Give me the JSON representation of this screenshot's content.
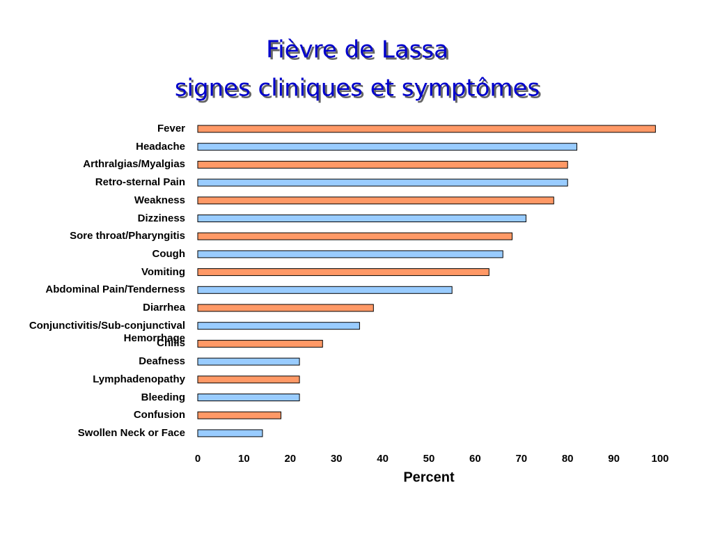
{
  "chart_data": {
    "type": "bar",
    "orientation": "horizontal",
    "title": [
      "Fièvre de Lassa",
      "signes cliniques et symptômes"
    ],
    "categories": [
      "Fever",
      "Headache",
      "Arthralgias/Myalgias",
      "Retro-sternal Pain",
      "Weakness",
      "Dizziness",
      "Sore throat/Pharyngitis",
      "Cough",
      "Vomiting",
      "Abdominal Pain/Tenderness",
      "Diarrhea",
      "Conjunctivitis/Sub-conjunctival Hemorrhage",
      "Chills",
      "Deafness",
      "Lymphadenopathy",
      "Bleeding",
      "Confusion",
      "Swollen Neck or Face"
    ],
    "values": [
      99,
      82,
      80,
      80,
      77,
      71,
      68,
      66,
      63,
      55,
      38,
      35,
      27,
      22,
      22,
      22,
      18,
      14
    ],
    "colors": [
      "#ff9966",
      "#99ccff"
    ],
    "xlabel": "Percent",
    "xlim": [
      0,
      100
    ],
    "xticks": [
      0,
      10,
      20,
      30,
      40,
      50,
      60,
      70,
      80,
      90,
      100
    ]
  }
}
